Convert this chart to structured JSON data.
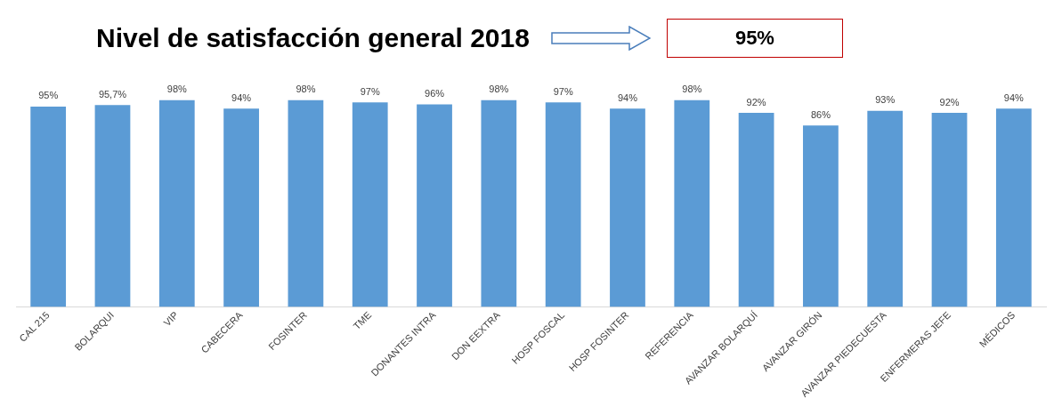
{
  "chart_data": {
    "type": "bar",
    "title": "Nivel de satisfacción general 2018",
    "annotations": [
      "95%"
    ],
    "categories": [
      "CAL 215",
      "BOLARQUI",
      "VIP",
      "CABECERA",
      "FOSINTER",
      "TME",
      "DONANTES INTRA",
      "DON EEXTRA",
      "HOSP FOSCAL",
      "HOSP FOSINTER",
      "REFERENCIA",
      "AVANZAR BOLARQUÍ",
      "AVANZAR GIRÓN",
      "AVANZAR PIEDECUESTA",
      "ENFERMERAS JEFE",
      "MÉDICOS"
    ],
    "values": [
      95,
      95.7,
      98,
      94,
      98,
      97,
      96,
      98,
      97,
      94,
      98,
      92,
      86,
      93,
      92,
      94
    ],
    "value_labels": [
      "95%",
      "95,7%",
      "98%",
      "94%",
      "98%",
      "97%",
      "96%",
      "98%",
      "97%",
      "94%",
      "98%",
      "92%",
      "86%",
      "93%",
      "92%",
      "94%"
    ],
    "color": "#5b9bd5",
    "tick_labels": "x",
    "grid": false,
    "legend": false
  }
}
